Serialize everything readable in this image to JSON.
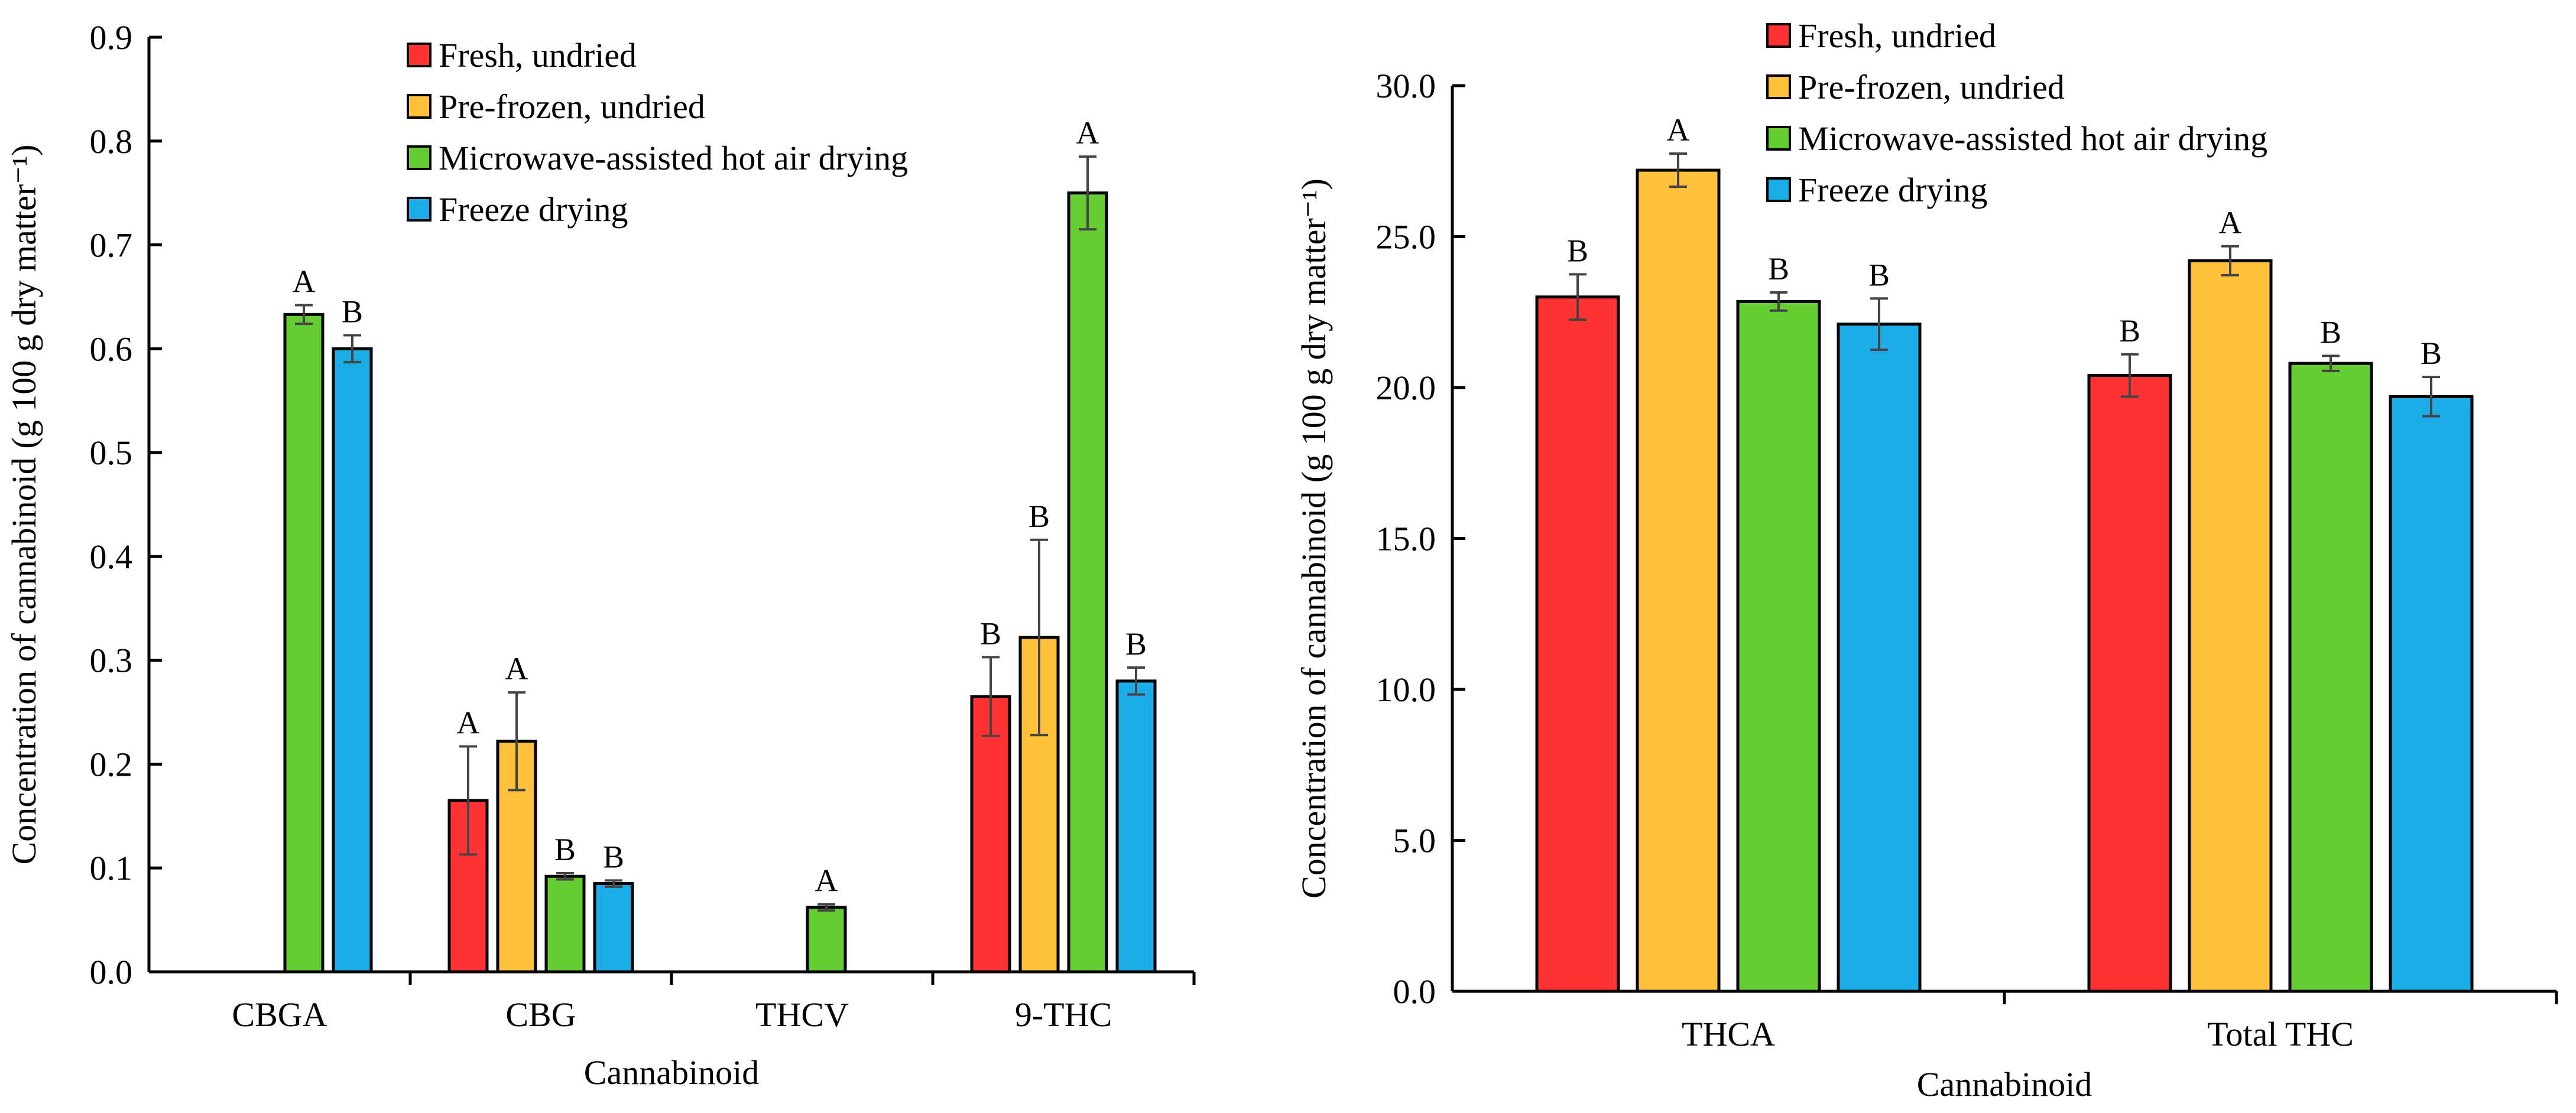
{
  "colors": {
    "fresh": "#ff3333",
    "prefrozen": "#ffc13b",
    "microwave": "#66cc33",
    "freeze": "#1cace8"
  },
  "chart_data": [
    {
      "type": "bar",
      "title": "",
      "xlabel": "Cannabinoid",
      "ylabel": "Concentration of cannabinoid (g 100 g dry matter⁻¹)",
      "ylim": [
        0,
        0.9
      ],
      "yticks": [
        0.0,
        0.1,
        0.2,
        0.3,
        0.4,
        0.5,
        0.6,
        0.7,
        0.8,
        0.9
      ],
      "ytick_labels": [
        "0.0",
        "0.1",
        "0.2",
        "0.3",
        "0.4",
        "0.5",
        "0.6",
        "0.7",
        "0.8",
        "0.9"
      ],
      "legend_position": "top-center",
      "categories": [
        "CBGA",
        "CBG",
        "THCV",
        "9-THC"
      ],
      "series": [
        {
          "name": "Fresh, undried",
          "key": "fresh",
          "values": [
            null,
            0.165,
            null,
            0.265
          ],
          "errors": [
            null,
            0.052,
            null,
            0.038
          ],
          "labels": [
            "",
            "A",
            "",
            "B"
          ]
        },
        {
          "name": "Pre-frozen, undried",
          "key": "prefrozen",
          "values": [
            null,
            0.222,
            null,
            0.322
          ],
          "errors": [
            null,
            0.047,
            null,
            0.094
          ],
          "labels": [
            "",
            "A",
            "",
            "B"
          ]
        },
        {
          "name": "Microwave-assisted hot air drying",
          "key": "microwave",
          "values": [
            0.633,
            0.092,
            0.062,
            0.75
          ],
          "errors": [
            0.009,
            0.003,
            0.003,
            0.035
          ],
          "labels": [
            "A",
            "B",
            "A",
            "A"
          ]
        },
        {
          "name": "Freeze drying",
          "key": "freeze",
          "values": [
            0.6,
            0.085,
            null,
            0.28
          ],
          "errors": [
            0.013,
            0.003,
            null,
            0.013
          ],
          "labels": [
            "B",
            "B",
            "",
            "B"
          ]
        }
      ]
    },
    {
      "type": "bar",
      "title": "",
      "xlabel": "Cannabinoid",
      "ylabel": "Concentration of cannabinoid (g 100 g dry matter⁻¹)",
      "ylim": [
        0,
        30
      ],
      "yticks": [
        0,
        5,
        10,
        15,
        20,
        25,
        30
      ],
      "ytick_labels": [
        "0.0",
        "5.0",
        "10.0",
        "15.0",
        "20.0",
        "25.0",
        "30.0"
      ],
      "legend_position": "top-center",
      "categories": [
        "THCA",
        "Total THC"
      ],
      "series": [
        {
          "name": "Fresh, undried",
          "key": "fresh",
          "values": [
            23.0,
            20.4
          ],
          "errors": [
            0.75,
            0.7
          ],
          "labels": [
            "B",
            "B"
          ]
        },
        {
          "name": "Pre-frozen, undried",
          "key": "prefrozen",
          "values": [
            27.2,
            24.2
          ],
          "errors": [
            0.55,
            0.48
          ],
          "labels": [
            "A",
            "A"
          ]
        },
        {
          "name": "Microwave-assisted hot air drying",
          "key": "microwave",
          "values": [
            22.85,
            20.8
          ],
          "errors": [
            0.3,
            0.25
          ],
          "labels": [
            "B",
            "B"
          ]
        },
        {
          "name": "Freeze drying",
          "key": "freeze",
          "values": [
            22.1,
            19.7
          ],
          "errors": [
            0.85,
            0.65
          ],
          "labels": [
            "B",
            "B"
          ]
        }
      ]
    }
  ]
}
